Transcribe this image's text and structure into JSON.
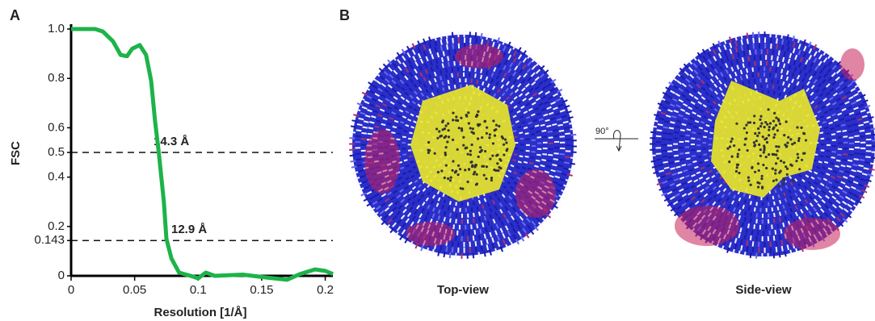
{
  "chart_data": {
    "type": "line",
    "x_label": "Resolution [1/Å]",
    "y_label": "FSC",
    "x": [
      0,
      0.019,
      0.025,
      0.033,
      0.039,
      0.044,
      0.048,
      0.054,
      0.059,
      0.063,
      0.066,
      0.069,
      0.073,
      0.075,
      0.079,
      0.085,
      0.094,
      0.1,
      0.106,
      0.113,
      0.135,
      0.154,
      0.17,
      0.18,
      0.192,
      0.2,
      0.206
    ],
    "series": [
      {
        "color": "#1db34a",
        "values": [
          1.0,
          1.0,
          0.99,
          0.95,
          0.895,
          0.89,
          0.92,
          0.935,
          0.895,
          0.79,
          0.63,
          0.5,
          0.3,
          0.15,
          0.07,
          0.013,
          0,
          -0.01,
          0.013,
          0,
          0.005,
          -0.007,
          -0.016,
          0.007,
          0.026,
          0.02,
          0.007
        ]
      }
    ],
    "xlim": [
      0,
      0.206
    ],
    "ylim": [
      0,
      1.0
    ],
    "xticks": [
      0,
      0.05,
      0.1,
      0.15,
      0.2
    ],
    "yticks": [
      0,
      0.143,
      0.2,
      0.4,
      0.5,
      0.6,
      0.8,
      {
        "value": 1,
        "label": "1.0"
      }
    ],
    "thresholds": [
      {
        "value": 0.5,
        "label": "14.3 Å"
      },
      {
        "value": 0.143,
        "label": "12.9 Å"
      }
    ]
  },
  "panel_labels": [
    "A",
    "B"
  ],
  "views": [
    "Top-view",
    "Side-view"
  ],
  "rotation_label": "90°"
}
